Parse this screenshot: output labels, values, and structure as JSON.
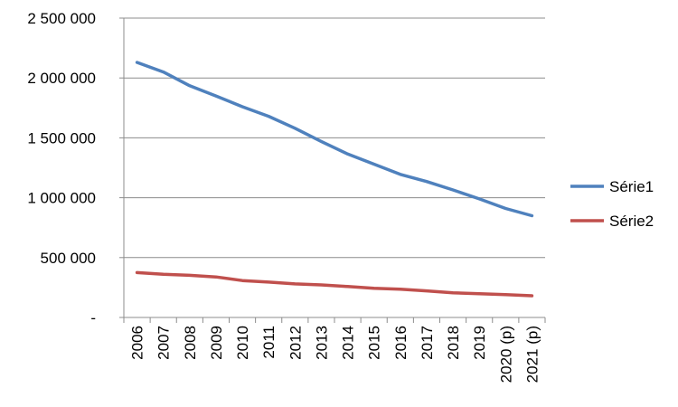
{
  "chart_data": {
    "type": "line",
    "title": "",
    "xlabel": "",
    "ylabel": "",
    "categories": [
      "2006",
      "2007",
      "2008",
      "2009",
      "2010",
      "2011",
      "2012",
      "2013",
      "2014",
      "2015",
      "2016",
      "2017",
      "2018",
      "2019",
      "2020 (p)",
      "2021 (p)"
    ],
    "ylim": [
      0,
      2500000
    ],
    "y_ticks": [
      "-",
      "500 000",
      "1 000 000",
      "1 500 000",
      "2 000 000",
      "2 500 000"
    ],
    "y_tick_values": [
      0,
      500000,
      1000000,
      1500000,
      2000000,
      2500000
    ],
    "grid": true,
    "legend_position": "right",
    "series": [
      {
        "name": "Série1",
        "color": "#4F81BD",
        "values": [
          2130000,
          2050000,
          1935000,
          1850000,
          1760000,
          1680000,
          1580000,
          1470000,
          1365000,
          1280000,
          1195000,
          1135000,
          1065000,
          990000,
          910000,
          850000
        ]
      },
      {
        "name": "Série2",
        "color": "#C0504D",
        "values": [
          375000,
          360000,
          352000,
          338000,
          308000,
          295000,
          280000,
          272000,
          258000,
          244000,
          236000,
          222000,
          206000,
          198000,
          190000,
          181000
        ]
      }
    ]
  }
}
